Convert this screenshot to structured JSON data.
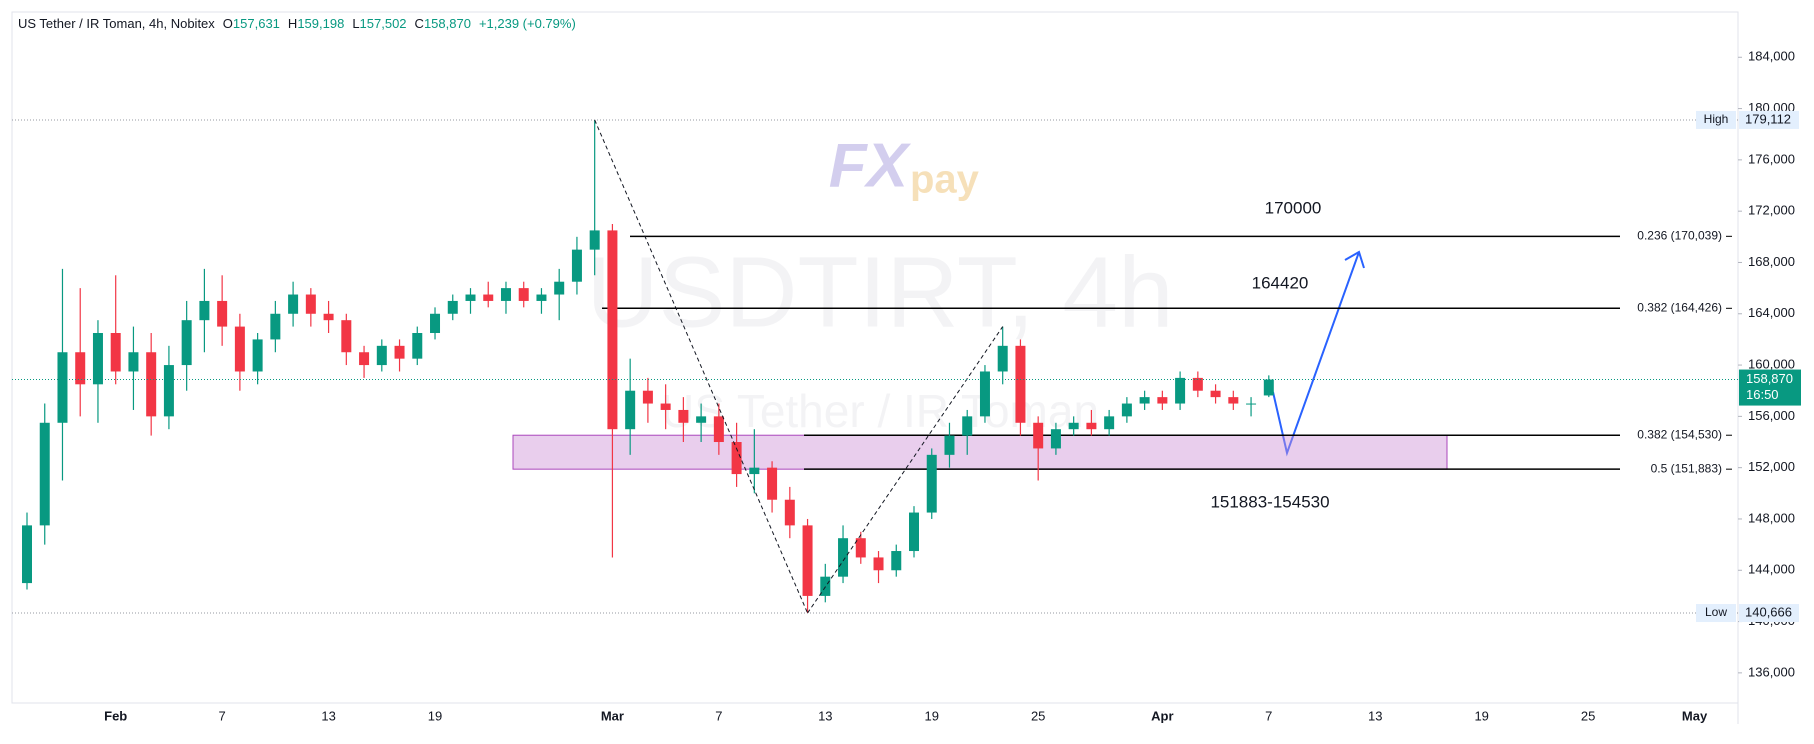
{
  "header": {
    "symbol": "US Tether / IR Toman, 4h, Nobitex",
    "ohlc": [
      {
        "key": "O",
        "value": "157,631"
      },
      {
        "key": "H",
        "value": "159,198"
      },
      {
        "key": "L",
        "value": "157,502"
      },
      {
        "key": "C",
        "value": "158,870"
      }
    ],
    "change": "+1,239 (+0.79%)"
  },
  "watermark": {
    "logo_fx": "FX",
    "logo_pay": "pay",
    "ticker": "USDTIRT, 4h",
    "name": "US Tether / IR Toman"
  },
  "chart_data": {
    "type": "candlestick",
    "categories": [
      null,
      null,
      null,
      null,
      null,
      "Feb",
      null,
      null,
      null,
      null,
      null,
      "7",
      null,
      null,
      null,
      null,
      null,
      "13",
      null,
      null,
      null,
      null,
      null,
      "19",
      null,
      null,
      null,
      null,
      null,
      null,
      null,
      null,
      null,
      "Mar",
      null,
      null,
      null,
      null,
      null,
      "7",
      null,
      null,
      null,
      null,
      null,
      "13",
      null,
      null,
      null,
      null,
      null,
      "19",
      null,
      null,
      null,
      null,
      null,
      "25",
      null,
      null,
      null,
      null,
      null,
      null,
      "Apr",
      null,
      null,
      null,
      null,
      null,
      "7",
      null,
      null,
      null,
      null,
      null,
      "13",
      null,
      null,
      null,
      null,
      null,
      "19",
      null,
      null,
      null,
      null,
      null,
      "25",
      null,
      null,
      null,
      null,
      null,
      "May",
      null,
      null
    ],
    "open": [
      143000,
      147500,
      155500,
      161000,
      158500,
      162500,
      159500,
      161000,
      156000,
      160000,
      163500,
      165000,
      163000,
      159500,
      162000,
      164000,
      165500,
      164000,
      163500,
      161000,
      160000,
      161500,
      160500,
      162500,
      164000,
      165000,
      165500,
      165000,
      166000,
      165000,
      165500,
      166500,
      169000,
      170500,
      155000,
      158000,
      157000,
      156500,
      155500,
      156000,
      154000,
      151500,
      152000,
      149500,
      147500,
      142000,
      143500,
      146500,
      145000,
      144000,
      145500,
      148500,
      153000,
      154500,
      156000,
      159500,
      161500,
      155500,
      153500,
      155000,
      155500,
      155000,
      156000,
      157000,
      157500,
      157000,
      159000,
      158000,
      157500,
      157000,
      157631,
      null,
      null,
      null,
      null,
      null,
      null,
      null,
      null,
      null,
      null,
      null,
      null,
      null,
      null,
      null,
      null,
      null,
      null,
      null,
      null,
      null,
      null,
      null,
      null,
      null,
      null
    ],
    "high": [
      148500,
      157000,
      167500,
      166000,
      163500,
      167000,
      163000,
      162500,
      161500,
      165000,
      167500,
      167000,
      164000,
      162500,
      165000,
      166500,
      166000,
      165000,
      164000,
      161500,
      162000,
      162000,
      163000,
      164500,
      165500,
      166000,
      166500,
      166500,
      166500,
      166000,
      167500,
      170000,
      179112,
      171000,
      160500,
      159000,
      158500,
      157500,
      157000,
      157000,
      155500,
      155000,
      152500,
      150500,
      148000,
      144500,
      147500,
      147000,
      145500,
      146000,
      149000,
      153500,
      155500,
      156500,
      160000,
      163000,
      162000,
      156000,
      155500,
      156000,
      156500,
      156500,
      157500,
      158000,
      158000,
      159500,
      159500,
      158500,
      158000,
      157500,
      159198,
      null,
      null,
      null,
      null,
      null,
      null,
      null,
      null,
      null,
      null,
      null,
      null,
      null,
      null,
      null,
      null,
      null,
      null,
      null,
      null,
      null,
      null,
      null,
      null,
      null,
      null
    ],
    "low": [
      142500,
      146000,
      151000,
      156000,
      155500,
      158500,
      156500,
      154500,
      155000,
      158000,
      161000,
      161500,
      158000,
      158500,
      161000,
      163000,
      163000,
      162500,
      160000,
      159000,
      159500,
      159500,
      160000,
      162000,
      163500,
      164000,
      164500,
      164000,
      164500,
      164000,
      163500,
      165500,
      167000,
      145000,
      153000,
      155500,
      155000,
      154000,
      154000,
      153000,
      150500,
      150000,
      148500,
      146500,
      140666,
      141500,
      143000,
      144500,
      143000,
      143500,
      145000,
      148000,
      152000,
      153000,
      155500,
      158500,
      154500,
      151000,
      153000,
      154500,
      154500,
      154500,
      155500,
      156500,
      156500,
      156500,
      157500,
      157000,
      156500,
      156000,
      157502,
      null,
      null,
      null,
      null,
      null,
      null,
      null,
      null,
      null,
      null,
      null,
      null,
      null,
      null,
      null,
      null,
      null,
      null,
      null,
      null,
      null,
      null,
      null,
      null,
      null,
      null
    ],
    "close": [
      147500,
      155500,
      161000,
      158500,
      162500,
      159500,
      161000,
      156000,
      160000,
      163500,
      165000,
      163000,
      159500,
      162000,
      164000,
      165500,
      164000,
      163500,
      161000,
      160000,
      161500,
      160500,
      162500,
      164000,
      165000,
      165500,
      165000,
      166000,
      165000,
      165500,
      166500,
      169000,
      170500,
      155000,
      158000,
      157000,
      156500,
      155500,
      156000,
      154000,
      151500,
      152000,
      149500,
      147500,
      142000,
      143500,
      146500,
      145000,
      144000,
      145500,
      148500,
      153000,
      154500,
      156000,
      159500,
      161500,
      155500,
      153500,
      155000,
      155500,
      155000,
      156000,
      157000,
      157500,
      157000,
      159000,
      158000,
      157500,
      157000,
      157000,
      158870,
      null,
      null,
      null,
      null,
      null,
      null,
      null,
      null,
      null,
      null,
      null,
      null,
      null,
      null,
      null,
      null,
      null,
      null,
      null,
      null,
      null,
      null,
      null,
      null,
      null,
      null
    ],
    "up_color": "#089981",
    "down_color": "#f23645",
    "ylim": [
      133650,
      187530
    ],
    "yticks": [
      {
        "value": 136000,
        "label": "136,000"
      },
      {
        "value": 140000,
        "label": "140,000"
      },
      {
        "value": 144000,
        "label": "144,000"
      },
      {
        "value": 148000,
        "label": "148,000"
      },
      {
        "value": 152000,
        "label": "152,000"
      },
      {
        "value": 156000,
        "label": "156,000"
      },
      {
        "value": 160000,
        "label": "160,000"
      },
      {
        "value": 164000,
        "label": "164,000"
      },
      {
        "value": 168000,
        "label": "168,000"
      },
      {
        "value": 172000,
        "label": "172,000"
      },
      {
        "value": 176000,
        "label": "176,000"
      },
      {
        "value": 180000,
        "label": "180,000"
      },
      {
        "value": 184000,
        "label": "184,000"
      }
    ],
    "grid": false,
    "high_low": [
      {
        "name": "High",
        "value": 179112,
        "value_label": "179,112"
      },
      {
        "name": "Low",
        "value": 140666,
        "value_label": "140,666"
      }
    ],
    "last_price": 158870,
    "last_price_label": "158,870",
    "countdown": "16:50",
    "levels": [
      {
        "value": 170039,
        "label": "0.236 (170,039)"
      },
      {
        "value": 164426,
        "label": "0.382 (164,426)"
      },
      {
        "value": 154530,
        "label": "0.382 (154,530)"
      },
      {
        "value": 151883,
        "label": "0.5 (151,883)"
      }
    ],
    "zone": {
      "low": 151883,
      "high": 154530,
      "label": "151883-154530"
    },
    "annotations": [
      "170000",
      "164420"
    ]
  }
}
